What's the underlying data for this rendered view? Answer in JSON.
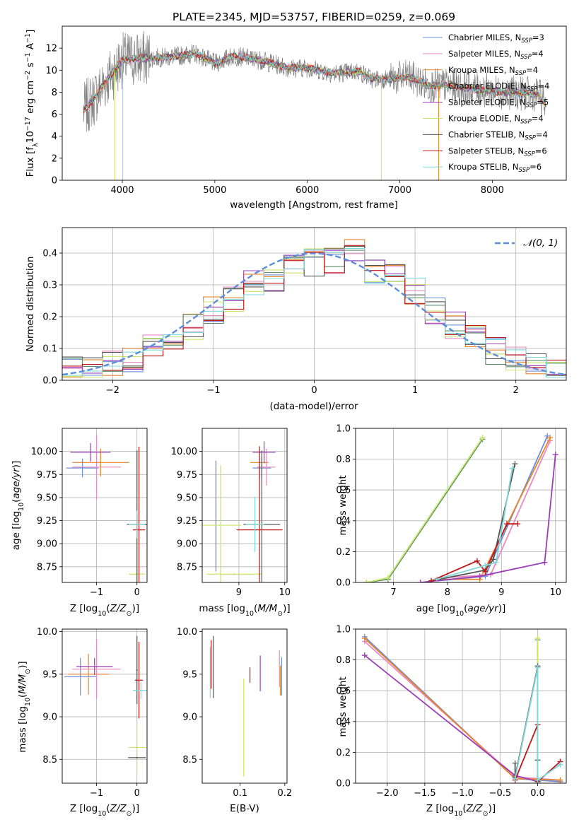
{
  "figure_title": "PLATE=2345, MJD=53757, FIBERID=0259, z=0.069",
  "colors": {
    "Chabrier MILES": "#6a8fd8",
    "Salpeter MILES": "#e88bc0",
    "Kroupa MILES": "#e8862a",
    "Chabrier ELODIE": "#5a8f6a",
    "Salpeter ELODIE": "#9a3fb8",
    "Kroupa ELODIE": "#c8e66a",
    "Chabrier STELIB": "#555555",
    "Salpeter STELIB": "#c01818",
    "Kroupa STELIB": "#7fd8d8",
    "data": "#808080",
    "normal": "#5b8dd9"
  },
  "chart_data": [
    {
      "id": "spectrum",
      "type": "line",
      "title": "PLATE=2345, MJD=53757, FIBERID=0259, z=0.069",
      "xlabel": "wavelength [Angstrom, rest frame]",
      "ylabel": "Flux [fλ10⁻¹⁷ erg cm⁻² s⁻¹ A⁻¹]",
      "xlim": [
        3350,
        8800
      ],
      "ylim": [
        0,
        14
      ],
      "xticks": [
        "4000",
        "5000",
        "6000",
        "7000",
        "8000"
      ],
      "yticks": [
        "0",
        "2",
        "4",
        "6",
        "8",
        "10",
        "12"
      ],
      "legend_position": "upper-right",
      "series": [
        {
          "label": "Chabrier MILES, NSSP=3",
          "base": "Chabrier MILES, N",
          "sub": "SSP",
          "tail": "=3"
        },
        {
          "label": "Salpeter MILES, NSSP=4",
          "base": "Salpeter MILES, N",
          "sub": "SSP",
          "tail": "=4"
        },
        {
          "label": "Kroupa MILES, NSSP=4",
          "base": "Kroupa MILES, N",
          "sub": "SSP",
          "tail": "=4"
        },
        {
          "label": "Chabrier ELODIE, NSSP=4",
          "base": "Chabrier ELODIE, N",
          "sub": "SSP",
          "tail": "=4"
        },
        {
          "label": "Salpeter ELODIE, NSSP=5",
          "base": "Salpeter ELODIE, N",
          "sub": "SSP",
          "tail": "=5"
        },
        {
          "label": "Kroupa ELODIE, NSSP=4",
          "base": "Kroupa ELODIE, N",
          "sub": "SSP",
          "tail": "=4"
        },
        {
          "label": "Chabrier STELIB, NSSP=4",
          "base": "Chabrier STELIB, N",
          "sub": "SSP",
          "tail": "=4"
        },
        {
          "label": "Salpeter STELIB, NSSP=6",
          "base": "Salpeter STELIB, N",
          "sub": "SSP",
          "tail": "=6"
        },
        {
          "label": "Kroupa STELIB, NSSP=6",
          "base": "Kroupa STELIB, N",
          "sub": "SSP",
          "tail": "=6"
        }
      ],
      "model_trend": [
        [
          3580,
          6.3
        ],
        [
          3700,
          7.5
        ],
        [
          3850,
          9.3
        ],
        [
          4000,
          10.9
        ],
        [
          4100,
          11.0
        ],
        [
          4300,
          11.1
        ],
        [
          4500,
          11.2
        ],
        [
          4800,
          11.5
        ],
        [
          5000,
          10.6
        ],
        [
          5200,
          11.3
        ],
        [
          5500,
          10.9
        ],
        [
          5800,
          10.2
        ],
        [
          6000,
          10.2
        ],
        [
          6300,
          9.7
        ],
        [
          6550,
          9.9
        ],
        [
          6700,
          9.2
        ],
        [
          6900,
          9.2
        ],
        [
          7100,
          9.4
        ],
        [
          7300,
          8.6
        ],
        [
          7500,
          8.6
        ],
        [
          7800,
          8.3
        ],
        [
          8000,
          8.1
        ],
        [
          8300,
          7.9
        ],
        [
          8500,
          7.8
        ],
        [
          8580,
          6.8
        ]
      ]
    },
    {
      "id": "residuals",
      "type": "line",
      "xlabel": "(data-model)/error",
      "ylabel": "Normed distribution",
      "xlim": [
        -2.5,
        2.5
      ],
      "ylim": [
        0,
        0.48
      ],
      "xticks": [
        "−2",
        "−1",
        "0",
        "1",
        "2"
      ],
      "yticks": [
        "0.0",
        "0.1",
        "0.2",
        "0.3",
        "0.4"
      ],
      "legend": "𝒩(0, 1)",
      "legend_position": "upper-right",
      "grid": true,
      "normal_curve": {
        "mean": 0,
        "std": 1
      },
      "bins": [
        -2.5,
        -2.3,
        -2.1,
        -1.9,
        -1.7,
        -1.5,
        -1.3,
        -1.1,
        -0.9,
        -0.7,
        -0.5,
        -0.3,
        -0.1,
        0.1,
        0.3,
        0.5,
        0.7,
        0.9,
        1.1,
        1.3,
        1.5,
        1.7,
        1.9,
        2.1,
        2.3,
        2.5
      ],
      "hist_approx": [
        0.03,
        0.04,
        0.06,
        0.07,
        0.1,
        0.14,
        0.17,
        0.22,
        0.26,
        0.3,
        0.32,
        0.36,
        0.37,
        0.38,
        0.4,
        0.35,
        0.32,
        0.28,
        0.22,
        0.17,
        0.13,
        0.09,
        0.07,
        0.05,
        0.04
      ]
    },
    {
      "id": "age-vs-Z",
      "type": "scatter",
      "xlabel": "Z [log10(Z/Z⊙)]",
      "ylabel": "age  [log10(age/yr)]",
      "xlim": [
        -1.85,
        0.25
      ],
      "ylim": [
        8.58,
        10.25
      ],
      "xticks": [
        "−1",
        "0"
      ],
      "yticks": [
        "8.75",
        "9.00",
        "9.25",
        "9.50",
        "9.75",
        "10.00"
      ],
      "grid": true
    },
    {
      "id": "age-vs-mass",
      "type": "scatter",
      "xlabel": "mass [log10(M/M⊙)]",
      "ylabel": "",
      "xlim": [
        8.2,
        10.05
      ],
      "ylim": [
        8.58,
        10.25
      ],
      "xticks": [
        "9",
        "10"
      ],
      "yticks": [
        "8.75",
        "9.00",
        "9.25",
        "9.50",
        "9.75",
        "10.00"
      ],
      "grid": true
    },
    {
      "id": "weight-vs-age",
      "type": "line",
      "xlabel": "age  [log10(age/yr)]",
      "ylabel": "mass weight",
      "xlim": [
        6.3,
        10.2
      ],
      "ylim": [
        0,
        1.0
      ],
      "xticks": [
        "7",
        "8",
        "9",
        "10"
      ],
      "yticks": [
        "0.0",
        "0.2",
        "0.4",
        "0.6",
        "0.8",
        "1.0"
      ],
      "grid": true,
      "series": [
        {
          "key": "Chabrier MILES",
          "points": [
            [
              7.8,
              0.01
            ],
            [
              8.7,
              0.04
            ],
            [
              9.85,
              0.95
            ]
          ]
        },
        {
          "key": "Salpeter MILES",
          "points": [
            [
              7.9,
              0.03
            ],
            [
              8.8,
              0.05
            ],
            [
              9.9,
              0.92
            ]
          ]
        },
        {
          "key": "Kroupa MILES",
          "points": [
            [
              7.8,
              0.02
            ],
            [
              8.6,
              0.02
            ],
            [
              9.9,
              0.94
            ]
          ]
        },
        {
          "key": "Chabrier ELODIE",
          "points": [
            [
              6.5,
              0.0
            ],
            [
              6.9,
              0.02
            ],
            [
              8.65,
              0.93
            ]
          ]
        },
        {
          "key": "Salpeter ELODIE",
          "points": [
            [
              7.5,
              0.0
            ],
            [
              8.6,
              0.04
            ],
            [
              9.8,
              0.13
            ],
            [
              10.0,
              0.83
            ]
          ]
        },
        {
          "key": "Kroupa ELODIE",
          "points": [
            [
              6.5,
              0.0
            ],
            [
              6.9,
              0.03
            ],
            [
              8.65,
              0.94
            ]
          ]
        },
        {
          "key": "Chabrier STELIB",
          "points": [
            [
              7.7,
              0.01
            ],
            [
              8.7,
              0.08
            ],
            [
              8.85,
              0.15
            ],
            [
              9.25,
              0.77
            ]
          ]
        },
        {
          "key": "Salpeter STELIB",
          "points": [
            [
              7.7,
              0.01
            ],
            [
              8.55,
              0.14
            ],
            [
              8.7,
              0.07
            ],
            [
              9.1,
              0.38
            ],
            [
              9.3,
              0.38
            ]
          ]
        },
        {
          "key": "Kroupa STELIB",
          "points": [
            [
              7.8,
              0.02
            ],
            [
              8.7,
              0.11
            ],
            [
              8.9,
              0.13
            ],
            [
              9.2,
              0.74
            ]
          ]
        }
      ]
    },
    {
      "id": "mass-vs-Z",
      "type": "scatter",
      "xlabel": "Z [log10(Z/Z⊙)]",
      "ylabel": "mass [log10(M/M⊙)]",
      "xlim": [
        -1.85,
        0.25
      ],
      "ylim": [
        8.22,
        10.03
      ],
      "xticks": [
        "−1",
        "0"
      ],
      "yticks": [
        "8.5",
        "9.0",
        "9.5",
        "10.0"
      ],
      "grid": true
    },
    {
      "id": "mass-vs-ebv",
      "type": "scatter",
      "xlabel": "E(B-V)",
      "ylabel": "",
      "xlim": [
        0.015,
        0.205
      ],
      "ylim": [
        8.22,
        10.03
      ],
      "xticks": [
        "0.1",
        "0.2"
      ],
      "yticks": [
        "8.5",
        "9.0",
        "9.5",
        "10.0"
      ],
      "grid": false
    },
    {
      "id": "weight-vs-Z",
      "type": "line",
      "xlabel": "Z [log10(Z/Z⊙)]",
      "ylabel": "mass weight",
      "xlim": [
        -2.42,
        0.38
      ],
      "ylim": [
        0,
        1.0
      ],
      "xticks": [
        "−2.0",
        "−1.5",
        "−1.0",
        "−0.5",
        "0.0"
      ],
      "yticks": [
        "0.0",
        "0.2",
        "0.4",
        "0.6",
        "0.8",
        "1.0"
      ],
      "grid": true,
      "series": [
        {
          "key": "Chabrier MILES",
          "points": [
            [
              -2.3,
              0.95
            ],
            [
              -0.3,
              0.03
            ],
            [
              0.3,
              0.01
            ]
          ]
        },
        {
          "key": "Salpeter MILES",
          "points": [
            [
              -2.3,
              0.92
            ],
            [
              -0.3,
              0.04
            ],
            [
              0.3,
              0.02
            ]
          ]
        },
        {
          "key": "Kroupa MILES",
          "points": [
            [
              -2.3,
              0.94
            ],
            [
              -0.3,
              0.03
            ],
            [
              0.3,
              0.02
            ]
          ]
        },
        {
          "key": "Salpeter ELODIE",
          "points": [
            [
              -2.3,
              0.83
            ],
            [
              -0.3,
              0.05
            ],
            [
              0.0,
              0.01
            ],
            [
              0.3,
              0.14
            ]
          ]
        },
        {
          "key": "Chabrier ELODIE",
          "points": [
            [
              0.0,
              0.0
            ],
            [
              0.0,
              0.93
            ]
          ]
        },
        {
          "key": "Kroupa ELODIE",
          "points": [
            [
              0.0,
              0.02
            ],
            [
              0.0,
              0.94
            ]
          ]
        },
        {
          "key": "Chabrier STELIB",
          "points": [
            [
              -0.3,
              0.13
            ],
            [
              -0.3,
              0.04
            ],
            [
              0.0,
              0.76
            ],
            [
              0.0,
              0.15
            ]
          ]
        },
        {
          "key": "Salpeter STELIB",
          "points": [
            [
              -0.3,
              0.02
            ],
            [
              0.0,
              0.38
            ],
            [
              0.0,
              0.01
            ],
            [
              0.3,
              0.14
            ]
          ]
        },
        {
          "key": "Kroupa STELIB",
          "points": [
            [
              -0.3,
              0.03
            ],
            [
              0.0,
              0.75
            ],
            [
              0.0,
              0.02
            ],
            [
              0.3,
              0.12
            ]
          ]
        }
      ]
    }
  ]
}
